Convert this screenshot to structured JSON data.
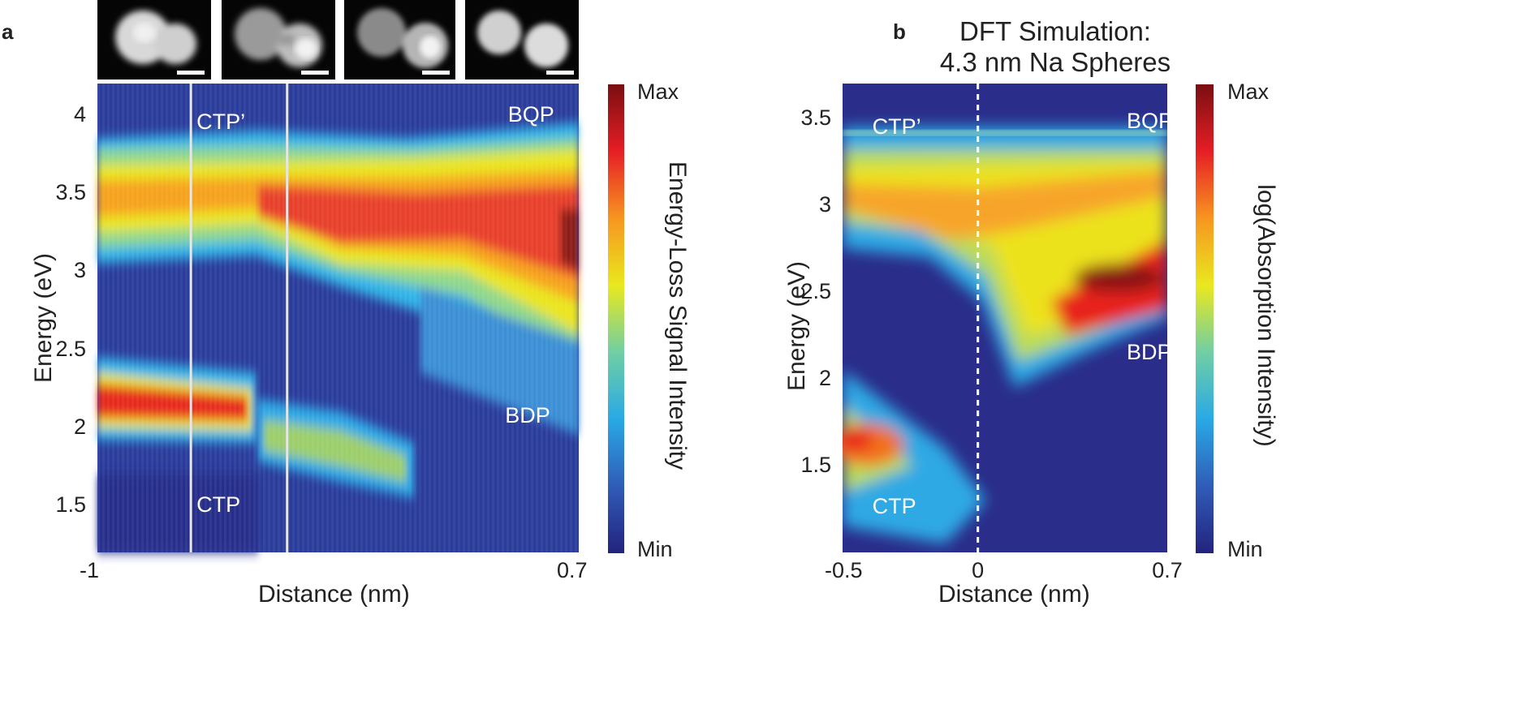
{
  "panels": {
    "a_label": "a",
    "b_label": "b"
  },
  "chart_data": [
    {
      "type": "heatmap",
      "panel": "a",
      "title": "",
      "xlabel": "Distance (nm)",
      "ylabel": "Energy (eV)",
      "xlim": [
        -1,
        0.7
      ],
      "ylim": [
        1.2,
        4.2
      ],
      "x_tick_labels": [
        "-1",
        "0.7"
      ],
      "y_ticks": [
        1.5,
        2,
        2.5,
        3,
        3.5,
        4
      ],
      "y_tick_labels": [
        "1.5",
        "2",
        "2.5",
        "3",
        "3.5",
        "4"
      ],
      "colorbar": {
        "label": "Energy-Loss Signal Intensity",
        "max_label": "Max",
        "min_label": "Min",
        "colors": [
          "#23237d",
          "#2f5cb8",
          "#29a9e6",
          "#71cfa3",
          "#e9e81e",
          "#f79520",
          "#e61e25",
          "#7a0e10"
        ]
      },
      "divider_positions_nm": [
        -0.67,
        -0.33
      ],
      "mode_labels": [
        {
          "text": "CTP’",
          "x": -0.65,
          "y": 3.95
        },
        {
          "text": "BQP",
          "x": 0.45,
          "y": 4.0
        },
        {
          "text": "BDP",
          "x": 0.44,
          "y": 2.07
        },
        {
          "text": "CTP",
          "x": -0.65,
          "y": 1.5
        }
      ],
      "thumbnails": 4
    },
    {
      "type": "heatmap",
      "panel": "b",
      "title": "DFT Simulation:",
      "subtitle": "4.3 nm Na Spheres",
      "xlabel": "Distance (nm)",
      "ylabel": "Energy (eV)",
      "xlim": [
        -0.5,
        0.7
      ],
      "ylim": [
        1.0,
        3.7
      ],
      "x_ticks": [
        -0.5,
        0,
        0.7
      ],
      "x_tick_labels": [
        "-0.5",
        "0",
        "0.7"
      ],
      "y_ticks": [
        1.5,
        2,
        2.5,
        3,
        3.5
      ],
      "y_tick_labels": [
        "1.5",
        "2",
        "2.5",
        "3",
        "3.5"
      ],
      "colorbar": {
        "label": "log(Absorption Intensity)",
        "max_label": "Max",
        "min_label": "Min",
        "colors": [
          "#23237d",
          "#2f5cb8",
          "#29a9e6",
          "#71cfa3",
          "#e9e81e",
          "#f79520",
          "#e61e25",
          "#7a0e10"
        ]
      },
      "dashed_line_x": 0,
      "mode_labels": [
        {
          "text": "CTP’",
          "x": -0.39,
          "y": 3.45
        },
        {
          "text": "BQP",
          "x": 0.55,
          "y": 3.48
        },
        {
          "text": "BDP",
          "x": 0.55,
          "y": 2.15
        },
        {
          "text": "CTP",
          "x": -0.39,
          "y": 1.26
        }
      ]
    }
  ]
}
